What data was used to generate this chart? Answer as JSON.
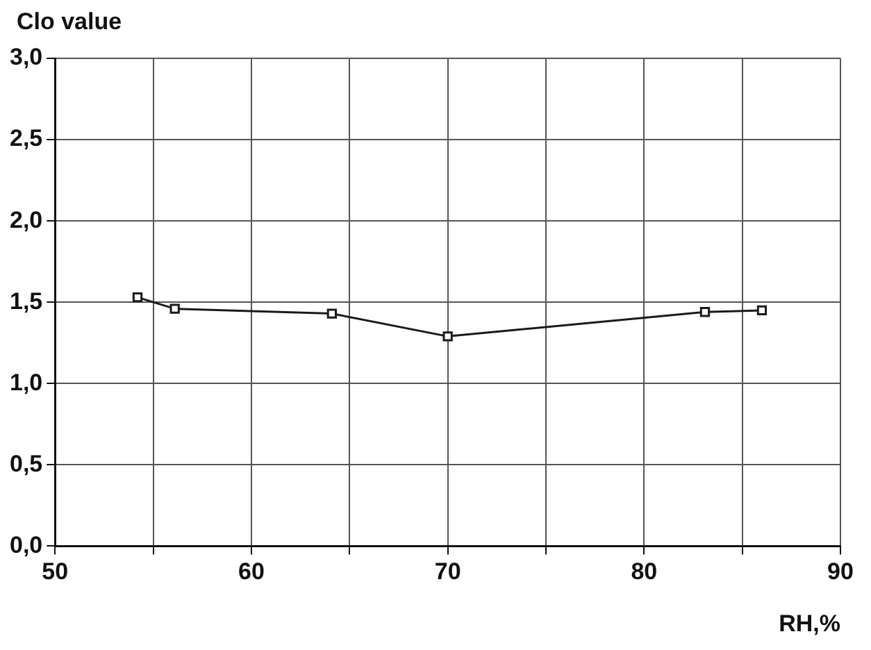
{
  "chart_data": {
    "type": "line",
    "xlabel": "RH,%",
    "ylabel": "Clo value",
    "x": [
      54.2,
      56.1,
      64.1,
      70,
      83.1,
      86
    ],
    "series": [
      {
        "color": "#1a1a1a",
        "values": [
          1.53,
          1.46,
          1.43,
          1.29,
          1.44,
          1.45
        ]
      }
    ],
    "xlim": [
      50,
      90
    ],
    "xticks": [
      50,
      {
        "value": 55,
        "label": null
      },
      60,
      {
        "value": 65,
        "label": null
      },
      70,
      {
        "value": 75,
        "label": null
      },
      80,
      {
        "value": 85,
        "label": null
      },
      90
    ],
    "ylim": [
      0,
      3
    ],
    "yticks": [
      {
        "value": 0,
        "label": "0,0"
      },
      {
        "value": 0.5,
        "label": "0,5"
      },
      {
        "value": 1,
        "label": "1,0"
      },
      {
        "value": 1.5,
        "label": "1,5"
      },
      {
        "value": 2,
        "label": "2,0"
      },
      {
        "value": 2.5,
        "label": "2,5"
      },
      {
        "value": 3,
        "label": "3,0"
      }
    ],
    "grid": true,
    "marker": "square",
    "line_style": "solid",
    "legend": false
  }
}
